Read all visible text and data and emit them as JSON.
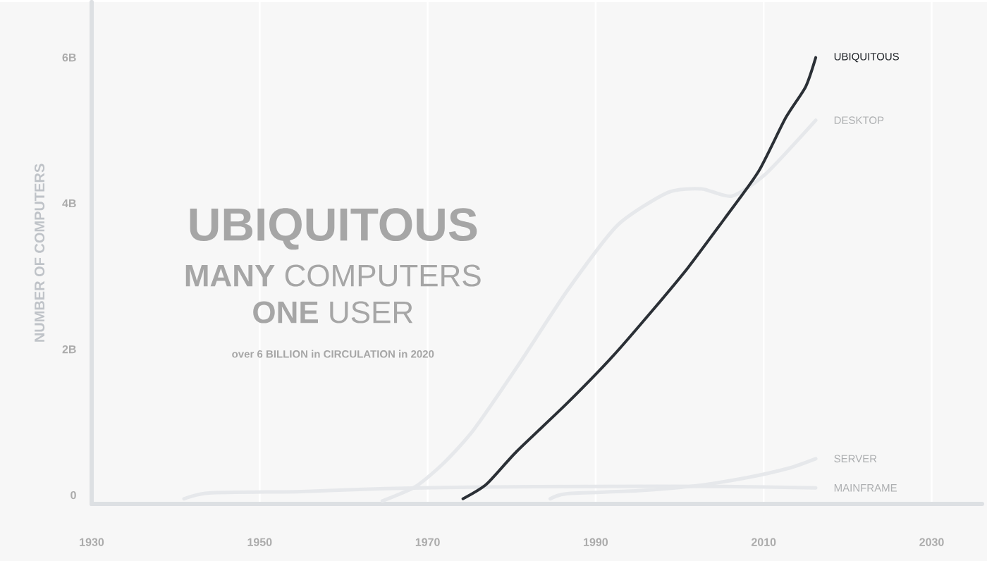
{
  "chart_data": {
    "type": "line",
    "title": "UBIQUITOUS",
    "subtitle": "**MANY** COMPUTERS",
    "annotations": [
      "**ONE** USER",
      "over 6 BILLION in CIRCULATION in 2020"
    ],
    "ylabel": "NUMBER OF COMPUTERS",
    "xlim": [
      1930,
      2036
    ],
    "ylim": [
      -0.12,
      6.76
    ],
    "xticks": [
      1930,
      1950,
      1970,
      1990,
      2010,
      2030
    ],
    "yticks": [
      {
        "value": 0,
        "label": "0"
      },
      {
        "value": 2,
        "label": "2B"
      },
      {
        "value": 4,
        "label": "4B"
      },
      {
        "value": 6,
        "label": "6B"
      }
    ],
    "grid": "x",
    "marker": "none",
    "legend": false,
    "series": [
      {
        "name": "MAINFRAME",
        "color": "#e6e8eb",
        "x": [
          1941,
          1944,
          1955,
          1965,
          1975,
          1990,
          2005,
          2016.2
        ],
        "values": [
          -0.05,
          0.03,
          0.05,
          0.09,
          0.11,
          0.12,
          0.12,
          0.1
        ]
      },
      {
        "name": "SERVER",
        "color": "#e6e8eb",
        "x": [
          1984.6,
          1986.6,
          1995,
          2002,
          2008,
          2013,
          2016.2
        ],
        "values": [
          -0.05,
          0.02,
          0.06,
          0.13,
          0.24,
          0.37,
          0.5
        ]
      },
      {
        "name": "DESKTOP",
        "color": "#e6e8eb",
        "x": [
          1964.6,
          1968.6,
          1972,
          1975.5,
          1980.6,
          1986.6,
          1992.6,
          1998.6,
          2002.6,
          2006.2,
          2010.2,
          2016.2
        ],
        "values": [
          -0.08,
          0.12,
          0.45,
          0.9,
          1.75,
          2.8,
          3.7,
          4.15,
          4.2,
          4.1,
          4.4,
          5.14
        ]
      },
      {
        "name": "UBIQUITOUS",
        "color": "#2b3036",
        "x": [
          1974.2,
          1977,
          1980.6,
          1986.6,
          1992,
          1996.6,
          2001,
          2005.4,
          2009.4,
          2012.6,
          2015,
          2016.2
        ],
        "values": [
          -0.05,
          0.15,
          0.6,
          1.26,
          1.9,
          2.51,
          3.12,
          3.8,
          4.44,
          5.17,
          5.6,
          6.0
        ]
      }
    ]
  }
}
